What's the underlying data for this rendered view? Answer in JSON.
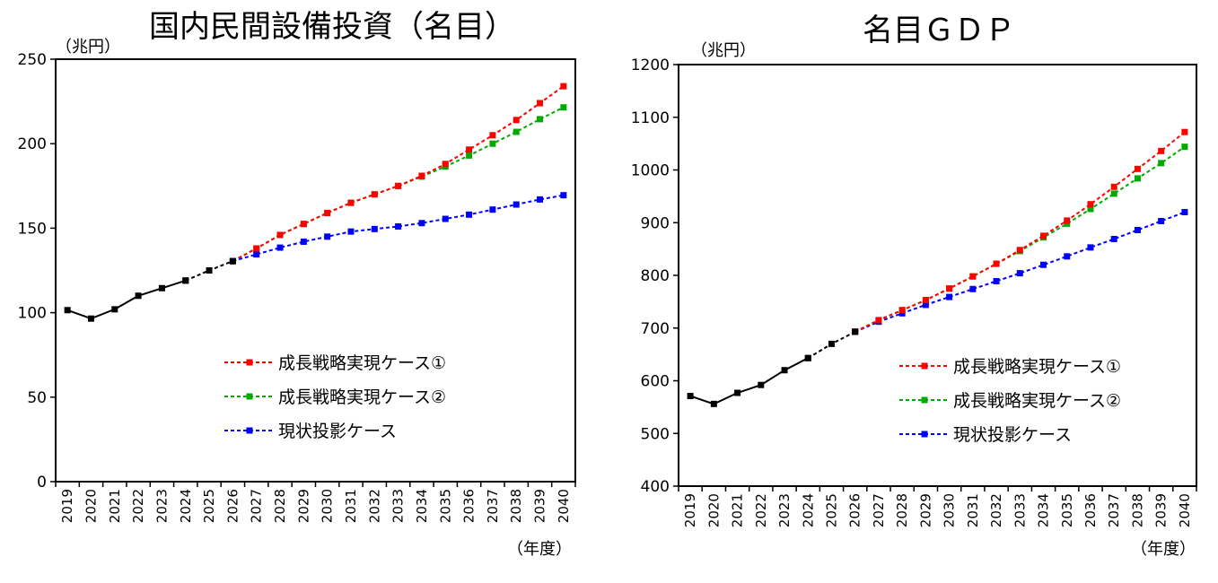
{
  "chart_data": [
    {
      "type": "line",
      "title": "国内民間設備投資（名目）",
      "ylabel": "（兆円）",
      "xlabel": "（年度）",
      "ylim": [
        0,
        250
      ],
      "yticks": [
        0,
        50,
        100,
        150,
        200,
        250
      ],
      "x": [
        "2019",
        "2020",
        "2021",
        "2022",
        "2023",
        "2024",
        "2025",
        "2026",
        "2027",
        "2028",
        "2029",
        "2030",
        "2031",
        "2032",
        "2033",
        "2034",
        "2035",
        "2036",
        "2037",
        "2038",
        "2039",
        "2040"
      ],
      "grid": false,
      "legend_position": "lower-right",
      "series": [
        {
          "name": "",
          "color": "#000000",
          "line": "solid",
          "x": [
            "2019",
            "2020",
            "2021",
            "2022",
            "2023",
            "2024"
          ],
          "values": [
            101.5,
            96.5,
            102.0,
            110.0,
            114.5,
            119.0
          ]
        },
        {
          "name": "",
          "color": "#000000",
          "line": "dashed",
          "x": [
            "2024",
            "2025",
            "2026"
          ],
          "values": [
            119.0,
            125.0,
            130.5
          ]
        },
        {
          "name": "成長戦略実現ケース①",
          "color": "#ff0000",
          "line": "dashed",
          "x": [
            "2026",
            "2027",
            "2028",
            "2029",
            "2030",
            "2031",
            "2032",
            "2033",
            "2034",
            "2035",
            "2036",
            "2037",
            "2038",
            "2039",
            "2040"
          ],
          "values": [
            130.5,
            138.0,
            146.0,
            152.5,
            159.0,
            165.0,
            170.0,
            175.0,
            181.0,
            188.0,
            196.5,
            205.0,
            214.0,
            224.0,
            234.0
          ]
        },
        {
          "name": "成長戦略実現ケース②",
          "color": "#00aa00",
          "line": "dashed",
          "x": [
            "2026",
            "2027",
            "2028",
            "2029",
            "2030",
            "2031",
            "2032",
            "2033",
            "2034",
            "2035",
            "2036",
            "2037",
            "2038",
            "2039",
            "2040"
          ],
          "values": [
            130.5,
            138.0,
            146.0,
            152.5,
            159.0,
            165.0,
            170.0,
            175.0,
            180.5,
            186.5,
            193.0,
            200.0,
            207.0,
            214.5,
            221.5
          ]
        },
        {
          "name": "現状投影ケース",
          "color": "#0000ff",
          "line": "dashed",
          "x": [
            "2026",
            "2027",
            "2028",
            "2029",
            "2030",
            "2031",
            "2032",
            "2033",
            "2034",
            "2035",
            "2036",
            "2037",
            "2038",
            "2039",
            "2040"
          ],
          "values": [
            130.5,
            134.5,
            138.5,
            142.0,
            145.0,
            148.0,
            149.5,
            151.0,
            153.0,
            155.5,
            158.0,
            161.0,
            164.0,
            167.0,
            169.5
          ]
        }
      ]
    },
    {
      "type": "line",
      "title": "名目ＧＤＰ",
      "ylabel": "（兆円）",
      "xlabel": "（年度）",
      "ylim": [
        400,
        1200
      ],
      "yticks": [
        400,
        500,
        600,
        700,
        800,
        900,
        1000,
        1100,
        1200
      ],
      "x": [
        "2019",
        "2020",
        "2021",
        "2022",
        "2023",
        "2024",
        "2025",
        "2026",
        "2027",
        "2028",
        "2029",
        "2030",
        "2031",
        "2032",
        "2033",
        "2034",
        "2035",
        "2036",
        "2037",
        "2038",
        "2039",
        "2040"
      ],
      "grid": false,
      "legend_position": "lower-right",
      "series": [
        {
          "name": "",
          "color": "#000000",
          "line": "solid",
          "x": [
            "2019",
            "2020",
            "2021",
            "2022",
            "2023",
            "2024"
          ],
          "values": [
            571,
            556,
            577,
            592,
            620,
            643
          ]
        },
        {
          "name": "",
          "color": "#000000",
          "line": "dashed",
          "x": [
            "2024",
            "2025",
            "2026"
          ],
          "values": [
            643,
            670,
            693
          ]
        },
        {
          "name": "成長戦略実現ケース①",
          "color": "#ff0000",
          "line": "dashed",
          "x": [
            "2026",
            "2027",
            "2028",
            "2029",
            "2030",
            "2031",
            "2032",
            "2033",
            "2034",
            "2035",
            "2036",
            "2037",
            "2038",
            "2039",
            "2040"
          ],
          "values": [
            693,
            715,
            734,
            753,
            775,
            798,
            822,
            848,
            875,
            904,
            935,
            968,
            1002,
            1036,
            1072
          ]
        },
        {
          "name": "成長戦略実現ケース②",
          "color": "#00aa00",
          "line": "dashed",
          "x": [
            "2026",
            "2027",
            "2028",
            "2029",
            "2030",
            "2031",
            "2032",
            "2033",
            "2034",
            "2035",
            "2036",
            "2037",
            "2038",
            "2039",
            "2040"
          ],
          "values": [
            693,
            715,
            734,
            753,
            775,
            798,
            822,
            846,
            872,
            898,
            926,
            955,
            984,
            1013,
            1044
          ]
        },
        {
          "name": "現状投影ケース",
          "color": "#0000ff",
          "line": "dashed",
          "x": [
            "2026",
            "2027",
            "2028",
            "2029",
            "2030",
            "2031",
            "2032",
            "2033",
            "2034",
            "2035",
            "2036",
            "2037",
            "2038",
            "2039",
            "2040"
          ],
          "values": [
            693,
            712,
            728,
            744,
            759,
            774,
            789,
            804,
            820,
            836,
            853,
            869,
            886,
            903,
            920
          ]
        }
      ]
    }
  ]
}
